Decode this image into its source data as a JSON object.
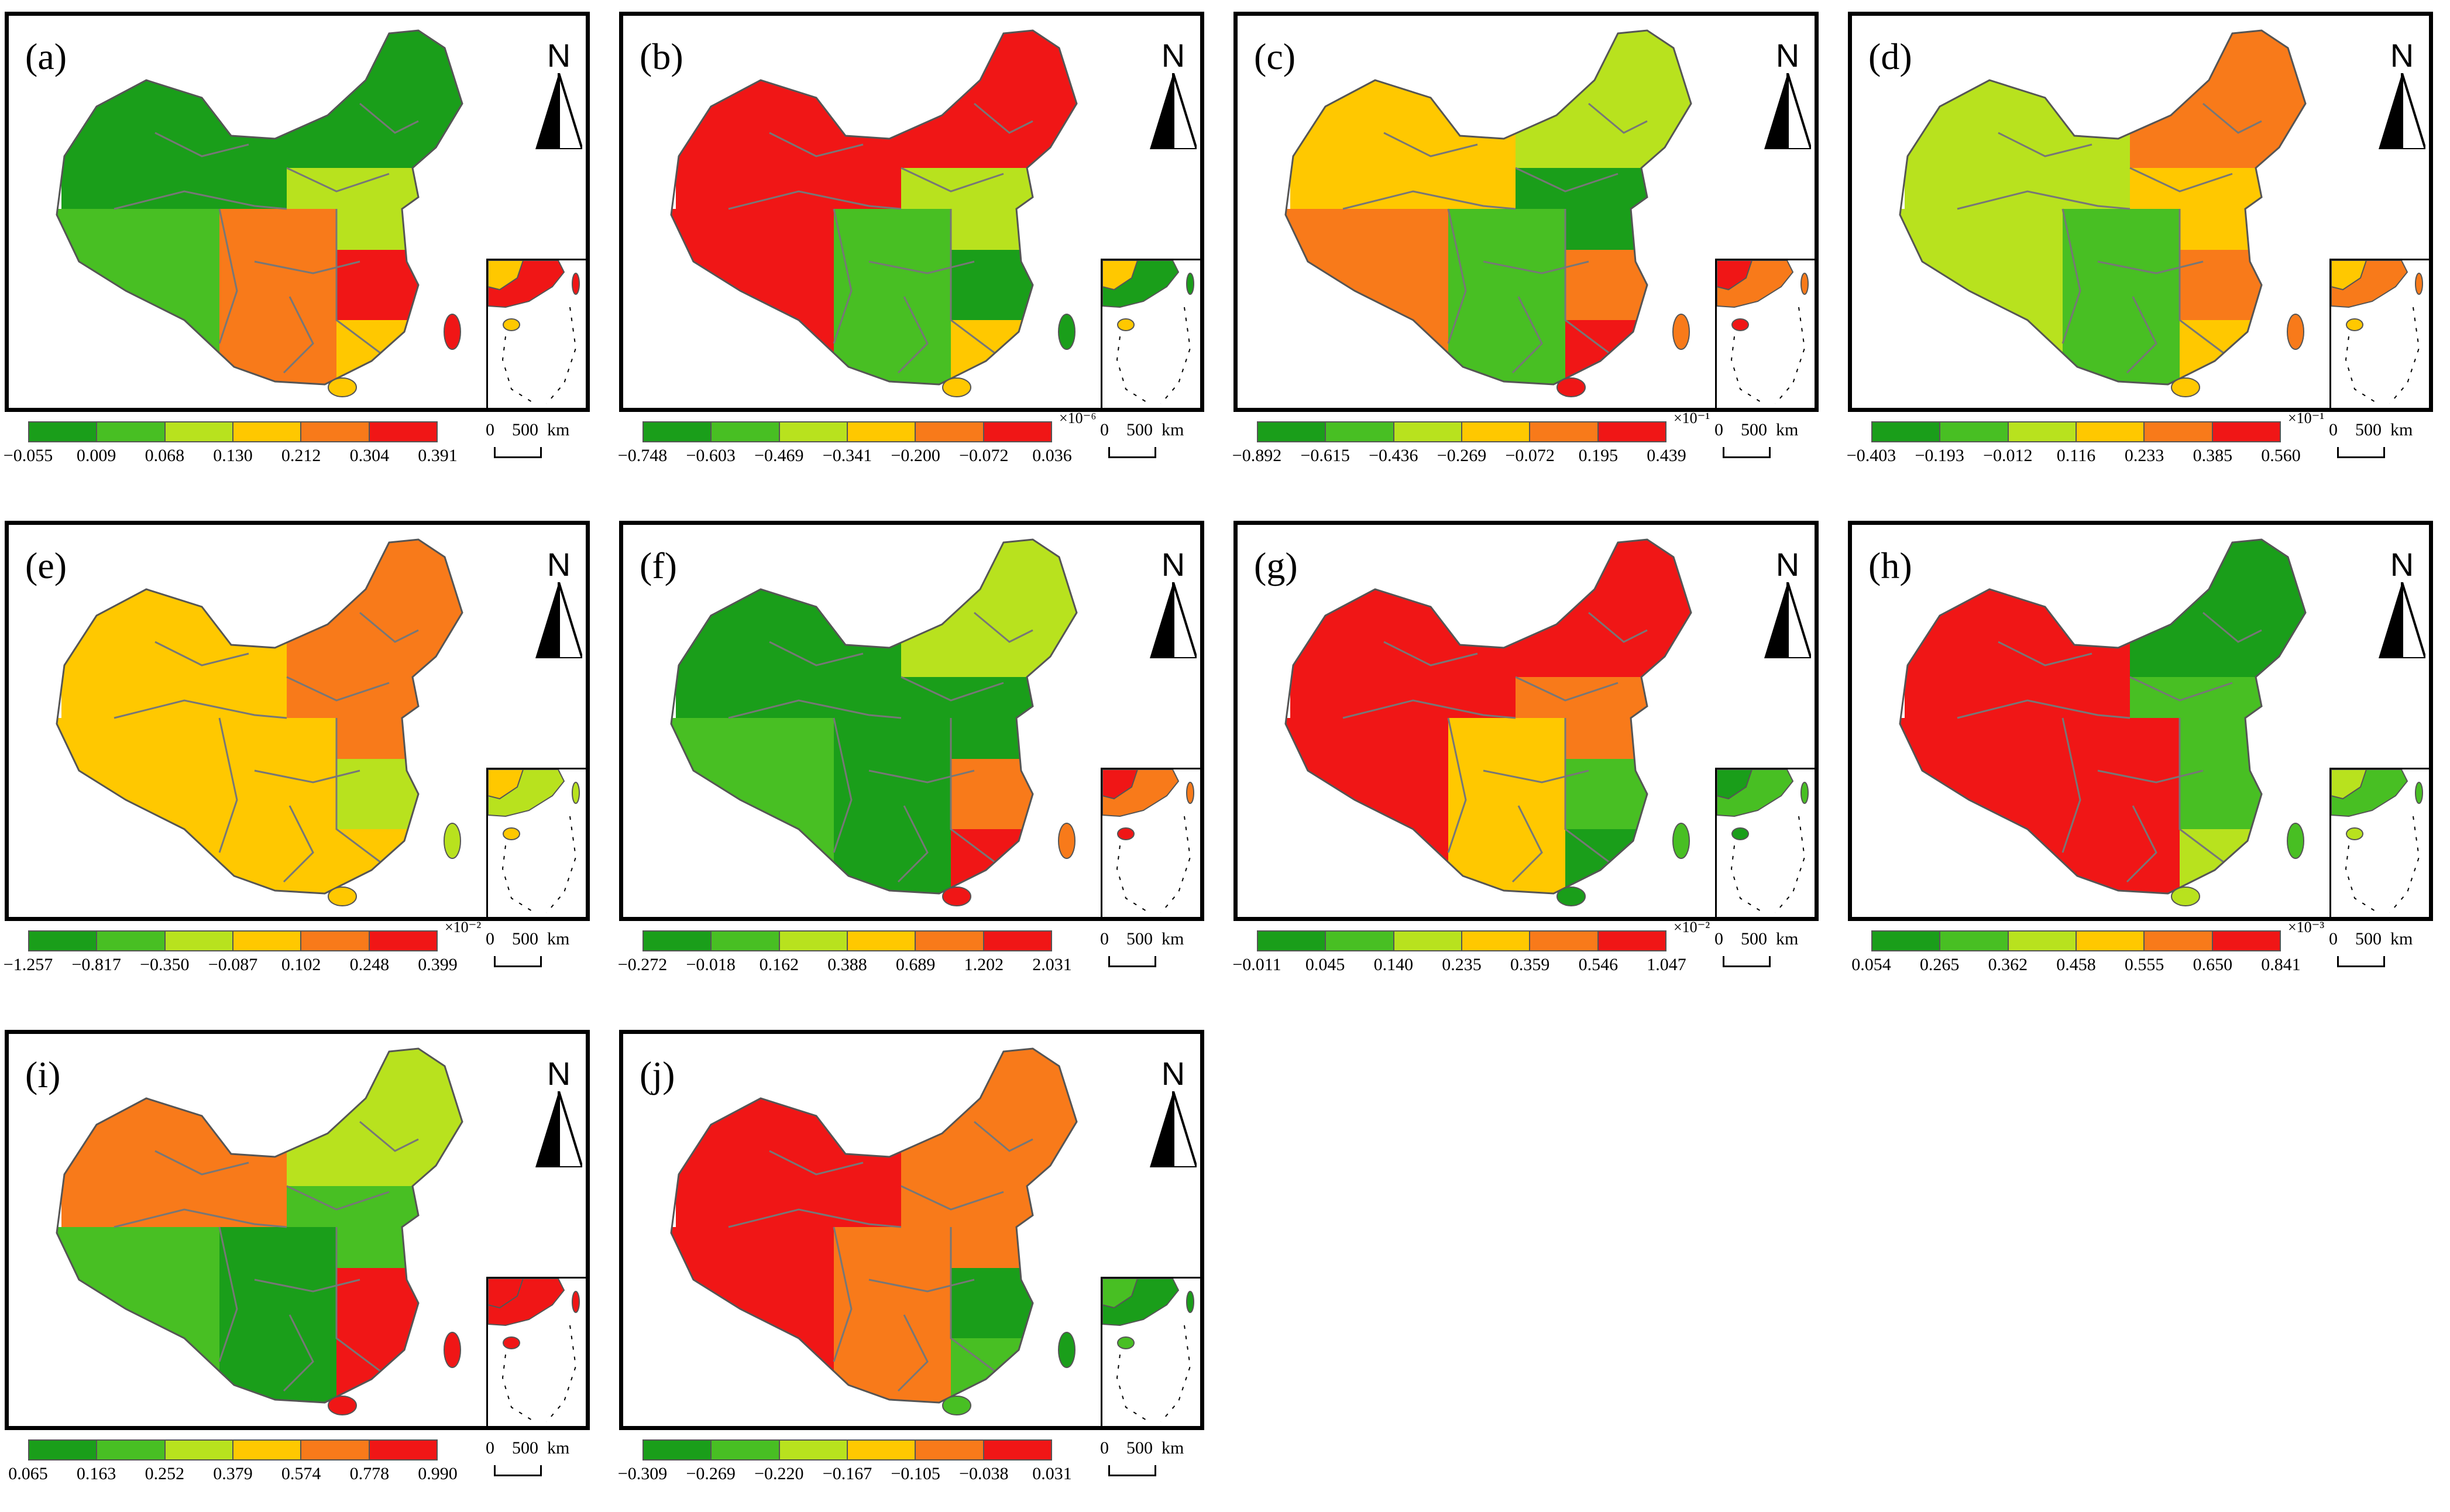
{
  "colors": [
    "#1a9e1a",
    "#48bf23",
    "#b8e21e",
    "#ffc800",
    "#f87a1a",
    "#f01616"
  ],
  "north_label": "N",
  "scale_bar": "0    500  km",
  "panels": [
    {
      "label": "(a)",
      "ticks": [
        "−0.055",
        "0.009",
        "0.068",
        "0.130",
        "0.212",
        "0.304",
        "0.391"
      ],
      "multiplier": ""
    },
    {
      "label": "(b)",
      "ticks": [
        "−0.748",
        "−0.603",
        "−0.469",
        "−0.341",
        "−0.200",
        "−0.072",
        "0.036"
      ],
      "multiplier": "×10⁻⁶"
    },
    {
      "label": "(c)",
      "ticks": [
        "−0.892",
        "−0.615",
        "−0.436",
        "−0.269",
        "−0.072",
        "0.195",
        "0.439"
      ],
      "multiplier": "×10⁻¹"
    },
    {
      "label": "(d)",
      "ticks": [
        "−0.403",
        "−0.193",
        "−0.012",
        "0.116",
        "0.233",
        "0.385",
        "0.560"
      ],
      "multiplier": "×10⁻¹"
    },
    {
      "label": "(e)",
      "ticks": [
        "−1.257",
        "−0.817",
        "−0.350",
        "−0.087",
        "0.102",
        "0.248",
        "0.399"
      ],
      "multiplier": "×10⁻²"
    },
    {
      "label": "(f)",
      "ticks": [
        "−0.272",
        "−0.018",
        "0.162",
        "0.388",
        "0.689",
        "1.202",
        "2.031"
      ],
      "multiplier": ""
    },
    {
      "label": "(g)",
      "ticks": [
        "−0.011",
        "0.045",
        "0.140",
        "0.235",
        "0.359",
        "0.546",
        "1.047"
      ],
      "multiplier": "×10⁻²"
    },
    {
      "label": "(h)",
      "ticks": [
        "0.054",
        "0.265",
        "0.362",
        "0.458",
        "0.555",
        "0.650",
        "0.841"
      ],
      "multiplier": "×10⁻³"
    },
    {
      "label": "(i)",
      "ticks": [
        "0.065",
        "0.163",
        "0.252",
        "0.379",
        "0.574",
        "0.778",
        "0.990"
      ],
      "multiplier": ""
    },
    {
      "label": "(j)",
      "ticks": [
        "−0.309",
        "−0.269",
        "−0.220",
        "−0.167",
        "−0.105",
        "−0.038",
        "0.031"
      ],
      "multiplier": ""
    }
  ]
}
